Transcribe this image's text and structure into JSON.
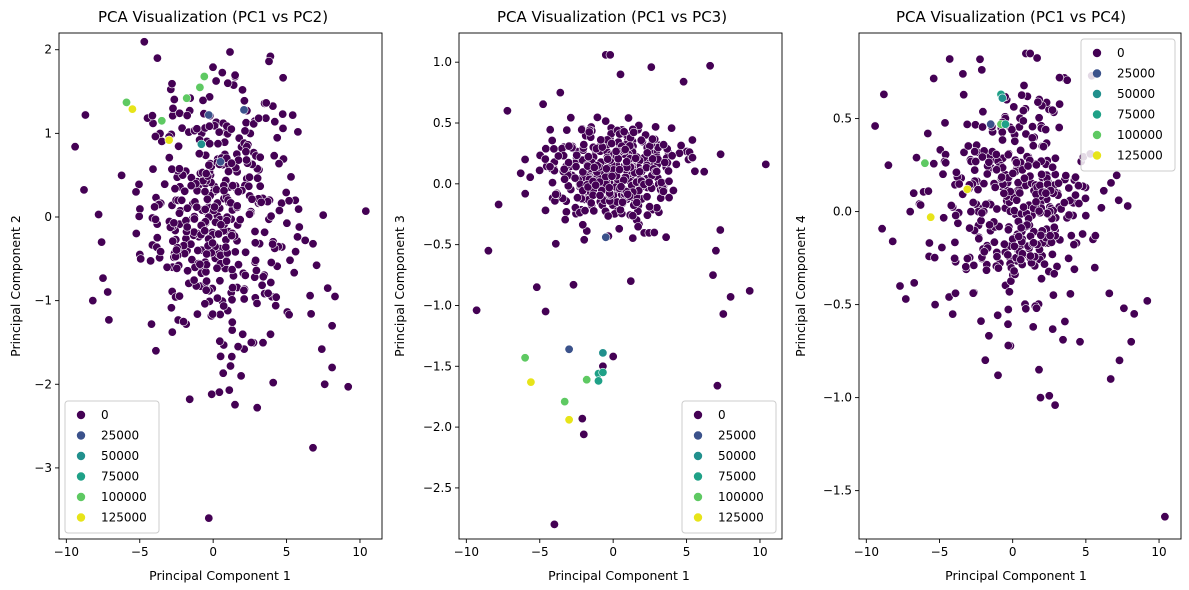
{
  "chart_data": [
    {
      "type": "scatter",
      "title": "PCA Visualization (PC1 vs PC2)",
      "xlabel": "Principal Component 1",
      "ylabel": "Principal Component 2",
      "xlim": [
        -10.5,
        11.5
      ],
      "ylim": [
        -3.85,
        2.2
      ],
      "xticks": [
        -10,
        -5,
        0,
        5,
        10
      ],
      "yticks": [
        -3,
        -2,
        -1,
        0,
        1,
        2
      ],
      "legend": {
        "loc": "lower-left",
        "entries": [
          "0",
          "25000",
          "50000",
          "75000",
          "100000",
          "125000"
        ]
      },
      "grid": false,
      "background_points": {
        "hue": 0,
        "count": 420,
        "core": {
          "cx": 0.3,
          "cy": 0.05,
          "sx": 2.6,
          "sy": 0.75
        },
        "fixed": [
          [
            -9.4,
            0.84
          ],
          [
            -8.7,
            1.22
          ],
          [
            -8.2,
            -1.0
          ],
          [
            -7.8,
            0.03
          ],
          [
            -7.5,
            -0.73
          ],
          [
            -7.1,
            -1.23
          ],
          [
            -7.6,
            -0.3
          ],
          [
            -3.8,
            1.9
          ],
          [
            -1.6,
            -2.18
          ],
          [
            -0.3,
            -3.6
          ],
          [
            -0.1,
            -2.12
          ],
          [
            1.1,
            -2.07
          ],
          [
            3.0,
            -2.28
          ],
          [
            1.9,
            -1.9
          ],
          [
            6.8,
            -2.76
          ],
          [
            7.4,
            -1.58
          ],
          [
            7.6,
            -2.0
          ],
          [
            7.8,
            -0.85
          ],
          [
            8.1,
            -1.8
          ],
          [
            8.3,
            -0.95
          ],
          [
            9.2,
            -2.03
          ],
          [
            10.4,
            0.07
          ],
          [
            6.8,
            -0.32
          ],
          [
            6.6,
            -0.94
          ],
          [
            5.3,
            0.48
          ],
          [
            3.9,
            1.92
          ],
          [
            3.8,
            1.86
          ],
          [
            4.2,
            1.14
          ],
          [
            1.0,
            1.6
          ],
          [
            2.0,
            1.52
          ],
          [
            -3.9,
            -1.6
          ],
          [
            -4.2,
            -1.28
          ],
          [
            3.1,
            1.18
          ],
          [
            2.6,
            -1.5
          ],
          [
            1.7,
            -1.55
          ]
        ]
      },
      "colored_points": [
        {
          "x": -5.9,
          "y": 1.37,
          "hue": 100000
        },
        {
          "x": -5.5,
          "y": 1.29,
          "hue": 125000
        },
        {
          "x": -3.5,
          "y": 1.15,
          "hue": 100000
        },
        {
          "x": -1.8,
          "y": 1.42,
          "hue": 100000
        },
        {
          "x": -0.9,
          "y": 1.55,
          "hue": 100000
        },
        {
          "x": -0.6,
          "y": 1.68,
          "hue": 100000
        },
        {
          "x": -0.8,
          "y": 0.87,
          "hue": 50000
        },
        {
          "x": -0.3,
          "y": 1.22,
          "hue": 25000
        },
        {
          "x": 0.5,
          "y": 0.66,
          "hue": 25000
        },
        {
          "x": 2.1,
          "y": 1.28,
          "hue": 25000
        },
        {
          "x": -3.0,
          "y": 0.92,
          "hue": 125000
        }
      ]
    },
    {
      "type": "scatter",
      "title": "PCA Visualization (PC1 vs PC3)",
      "xlabel": "Principal Component 1",
      "ylabel": "Principal Component 3",
      "xlim": [
        -10.5,
        11.5
      ],
      "ylim": [
        -2.92,
        1.24
      ],
      "xticks": [
        -10,
        -5,
        0,
        5,
        10
      ],
      "yticks": [
        -2.5,
        -2.0,
        -1.5,
        -1.0,
        -0.5,
        0.0,
        0.5,
        1.0
      ],
      "legend": {
        "loc": "lower-right",
        "entries": [
          "0",
          "25000",
          "50000",
          "75000",
          "100000",
          "125000"
        ]
      },
      "grid": false,
      "background_points": {
        "hue": 0,
        "count": 420,
        "core": {
          "cx": 0.1,
          "cy": 0.08,
          "sx": 2.2,
          "sy": 0.2
        },
        "fixed": [
          [
            -9.3,
            -1.04
          ],
          [
            -8.5,
            -0.55
          ],
          [
            -7.8,
            -0.17
          ],
          [
            -7.2,
            0.6
          ],
          [
            -4.0,
            -2.8
          ],
          [
            -2.1,
            -1.93
          ],
          [
            -2.0,
            -2.06
          ],
          [
            -0.5,
            1.06
          ],
          [
            -0.2,
            1.06
          ],
          [
            0.5,
            0.9
          ],
          [
            2.6,
            0.96
          ],
          [
            4.8,
            0.84
          ],
          [
            6.6,
            0.97
          ],
          [
            10.4,
            0.16
          ],
          [
            6.8,
            -0.75
          ],
          [
            7.0,
            -0.55
          ],
          [
            7.3,
            -0.38
          ],
          [
            7.5,
            -1.07
          ],
          [
            8.0,
            -0.93
          ],
          [
            9.3,
            -0.88
          ],
          [
            7.1,
            -1.66
          ],
          [
            0.0,
            -1.42
          ],
          [
            -0.7,
            -1.5
          ],
          [
            1.2,
            -0.8
          ],
          [
            -5.2,
            -0.85
          ],
          [
            -4.6,
            -1.05
          ],
          [
            -3.6,
            0.75
          ],
          [
            5.4,
            0.36
          ],
          [
            6.2,
            0.1
          ],
          [
            -6.0,
            0.2
          ],
          [
            -2.7,
            -0.83
          ],
          [
            2.8,
            -0.4
          ]
        ]
      },
      "colored_points": [
        {
          "x": -6.0,
          "y": -1.43,
          "hue": 100000
        },
        {
          "x": -5.6,
          "y": -1.63,
          "hue": 125000
        },
        {
          "x": -3.0,
          "y": -1.36,
          "hue": 25000
        },
        {
          "x": -3.3,
          "y": -1.79,
          "hue": 100000
        },
        {
          "x": -3.0,
          "y": -1.94,
          "hue": 125000
        },
        {
          "x": -1.8,
          "y": -1.61,
          "hue": 100000
        },
        {
          "x": -1.0,
          "y": -1.56,
          "hue": 75000
        },
        {
          "x": -0.7,
          "y": -1.55,
          "hue": 75000
        },
        {
          "x": -0.7,
          "y": -1.39,
          "hue": 50000
        },
        {
          "x": -1.0,
          "y": -1.62,
          "hue": 75000
        },
        {
          "x": -0.5,
          "y": -0.44,
          "hue": 25000
        }
      ]
    },
    {
      "type": "scatter",
      "title": "PCA Visualization (PC1 vs PC4)",
      "xlabel": "Principal Component 1",
      "ylabel": "Principal Component 4",
      "xlim": [
        -10.5,
        11.5
      ],
      "ylim": [
        -1.76,
        0.96
      ],
      "xticks": [
        -10,
        -5,
        0,
        5,
        10
      ],
      "yticks": [
        -1.5,
        -1.0,
        -0.5,
        0.0,
        0.5
      ],
      "legend": {
        "loc": "top-right",
        "entries": [
          "0",
          "25000",
          "50000",
          "75000",
          "100000",
          "125000"
        ]
      },
      "grid": false,
      "background_points": {
        "hue": 0,
        "count": 420,
        "core": {
          "cx": 0.3,
          "cy": 0.02,
          "sx": 2.6,
          "sy": 0.3
        },
        "fixed": [
          [
            -9.4,
            0.46
          ],
          [
            -8.8,
            0.63
          ],
          [
            -8.2,
            -0.16
          ],
          [
            -7.7,
            -0.4
          ],
          [
            -7.3,
            -0.47
          ],
          [
            -7.0,
            0.0
          ],
          [
            -4.3,
            0.82
          ],
          [
            -3.4,
            0.74
          ],
          [
            -2.4,
            0.94
          ],
          [
            -1.0,
            -0.88
          ],
          [
            -0.3,
            -0.72
          ],
          [
            0.9,
            0.85
          ],
          [
            1.2,
            0.85
          ],
          [
            1.9,
            -1.0
          ],
          [
            2.5,
            -0.99
          ],
          [
            2.9,
            -1.04
          ],
          [
            6.7,
            -0.9
          ],
          [
            6.6,
            -0.44
          ],
          [
            7.3,
            -0.8
          ],
          [
            7.6,
            -0.52
          ],
          [
            8.1,
            -0.7
          ],
          [
            8.3,
            -0.55
          ],
          [
            9.2,
            -0.48
          ],
          [
            10.4,
            -1.64
          ],
          [
            5.3,
            0.31
          ],
          [
            5.4,
            0.73
          ],
          [
            3.2,
            0.72
          ],
          [
            1.8,
            -0.85
          ],
          [
            1.4,
            -0.62
          ],
          [
            -5.8,
            0.42
          ],
          [
            -5.3,
            -0.5
          ],
          [
            4.6,
            -0.7
          ]
        ]
      },
      "colored_points": [
        {
          "x": -6.0,
          "y": 0.26,
          "hue": 100000
        },
        {
          "x": -5.6,
          "y": -0.03,
          "hue": 125000
        },
        {
          "x": -3.1,
          "y": 0.12,
          "hue": 125000
        },
        {
          "x": -0.8,
          "y": 0.63,
          "hue": 75000
        },
        {
          "x": -0.8,
          "y": 0.47,
          "hue": 100000
        },
        {
          "x": -0.7,
          "y": 0.61,
          "hue": 50000
        },
        {
          "x": -0.5,
          "y": 0.47,
          "hue": 75000
        },
        {
          "x": -1.5,
          "y": 0.47,
          "hue": 25000
        }
      ]
    }
  ],
  "palette": {
    "0": "#440154",
    "25000": "#3b528b",
    "50000": "#21908d",
    "75000": "#1fa187",
    "100000": "#5ec962",
    "125000": "#e7e419"
  }
}
